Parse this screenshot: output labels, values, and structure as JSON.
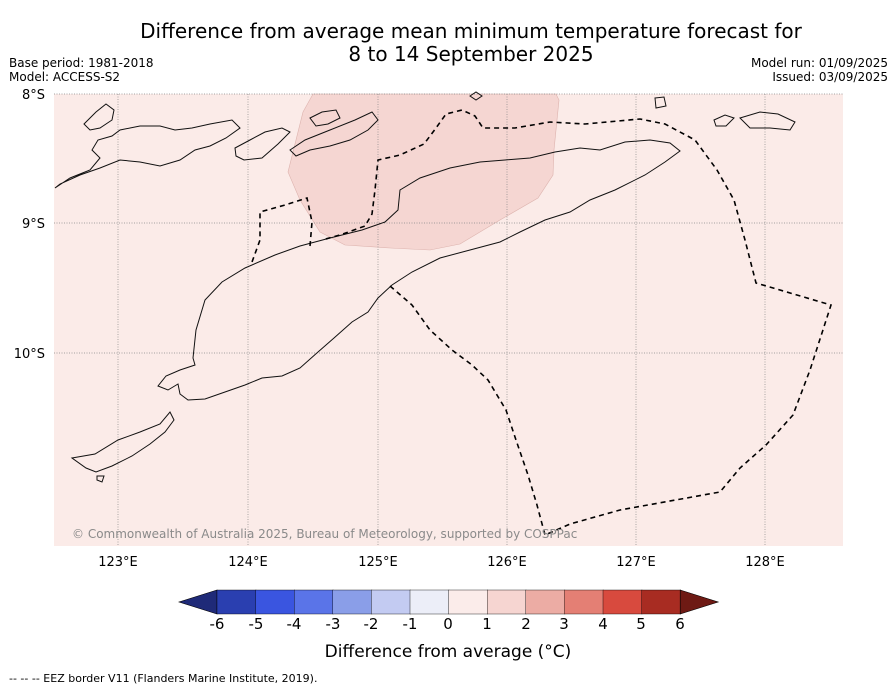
{
  "title_line1": "Difference from average mean minimum temperature forecast for",
  "title_line2": "8 to 14 September 2025",
  "base_period": "Base period: 1981-2018",
  "model": "Model: ACCESS-S2",
  "model_run": "Model run: 01/09/2025",
  "issued": "Issued: 03/09/2025",
  "map": {
    "lat_labels": [
      "8°S",
      "9°S",
      "10°S"
    ],
    "lon_labels": [
      "123°E",
      "124°E",
      "125°E",
      "126°E",
      "127°E",
      "128°E"
    ],
    "copyright": "© Commonwealth of Australia 2025, Bureau of Meteorology, supported by COSPPac"
  },
  "colorbar": {
    "title": "Difference from average (°C)",
    "ticks": [
      "-6",
      "-5",
      "-4",
      "-3",
      "-2",
      "-1",
      "0",
      "1",
      "2",
      "3",
      "4",
      "5",
      "6"
    ],
    "colors": [
      "#1f2a78",
      "#2a3fb0",
      "#3a55e0",
      "#5a74e8",
      "#8a9ee8",
      "#c3cbf2",
      "#eceef8",
      "#fbecea",
      "#f6d5d1",
      "#ecaca4",
      "#e47f74",
      "#d84a3e",
      "#a82c22",
      "#6e1a14"
    ]
  },
  "footer_legend": "--  --  -- EEZ border V11 (Flanders Marine Institute, 2019)."
}
